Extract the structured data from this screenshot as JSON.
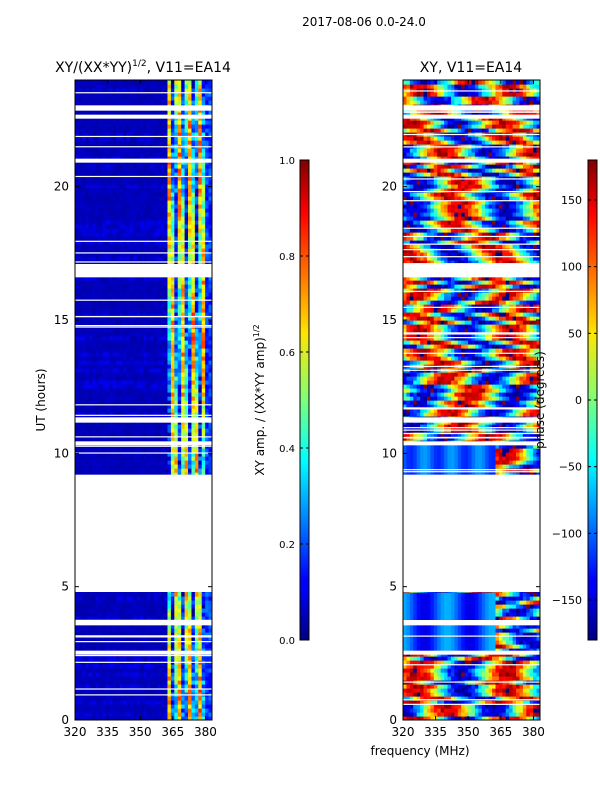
{
  "suptitle": "2017-08-06 0.0-24.0",
  "xlabel_shared": "frequency (MHz)",
  "chart_data": [
    {
      "type": "heatmap",
      "title": "XY/(XX*YY)",
      "title_exponent": "1/2",
      "title_suffix": ", V11=EA14",
      "xlabel": "",
      "ylabel": "UT (hours)",
      "xlim": [
        320,
        383
      ],
      "ylim": [
        0,
        24
      ],
      "xticks": [
        320,
        335,
        350,
        365,
        380
      ],
      "yticks": [
        0,
        5,
        10,
        15,
        20
      ],
      "colorbar": {
        "label": "XY amp. / (XX*YY amp)",
        "label_exponent": "1/2",
        "range": [
          0.0,
          1.0
        ],
        "ticks": [
          "0.0",
          "0.2",
          "0.4",
          "0.6",
          "0.8",
          "1.0"
        ],
        "colormap": "jet"
      },
      "data_gaps_hours": [
        [
          4.8,
          9.2
        ],
        [
          16.6,
          17.1
        ],
        [
          22.85,
          23.05
        ],
        [
          22.55,
          22.7
        ],
        [
          20.9,
          21.05
        ],
        [
          11.15,
          11.35
        ],
        [
          10.3,
          10.45
        ],
        [
          3.55,
          3.75
        ],
        [
          2.45,
          2.6
        ]
      ],
      "description": "Mostly low amplitude (~0.05) below 362 MHz; elevated, variable amplitude (0.3-0.7) in the 362-380 MHz band"
    },
    {
      "type": "heatmap",
      "title": "XY, V11=EA14",
      "xlabel": "frequency (MHz)",
      "ylabel": "",
      "xlim": [
        320,
        383
      ],
      "ylim": [
        0,
        24
      ],
      "xticks": [
        320,
        335,
        350,
        365,
        380
      ],
      "yticks": [
        0,
        5,
        10,
        15,
        20
      ],
      "colorbar": {
        "label": "phase (degrees)",
        "range": [
          -180,
          180
        ],
        "ticks": [
          "−150",
          "−100",
          "−50",
          "0",
          "50",
          "100",
          "150"
        ],
        "tick_values": [
          -150,
          -100,
          -50,
          0,
          50,
          100,
          150
        ],
        "colormap": "jet"
      },
      "data_gaps_hours": [
        [
          4.8,
          9.2
        ],
        [
          16.6,
          17.1
        ],
        [
          22.85,
          23.05
        ],
        [
          22.55,
          22.7
        ],
        [
          20.9,
          21.05
        ],
        [
          11.15,
          11.35
        ],
        [
          10.3,
          10.45
        ],
        [
          3.55,
          3.75
        ],
        [
          2.45,
          2.6
        ]
      ],
      "description": "Phase varies widely; quiet blue bands in 5-10 h region at low frequencies, rapid wrapping near 365-380 MHz"
    }
  ]
}
